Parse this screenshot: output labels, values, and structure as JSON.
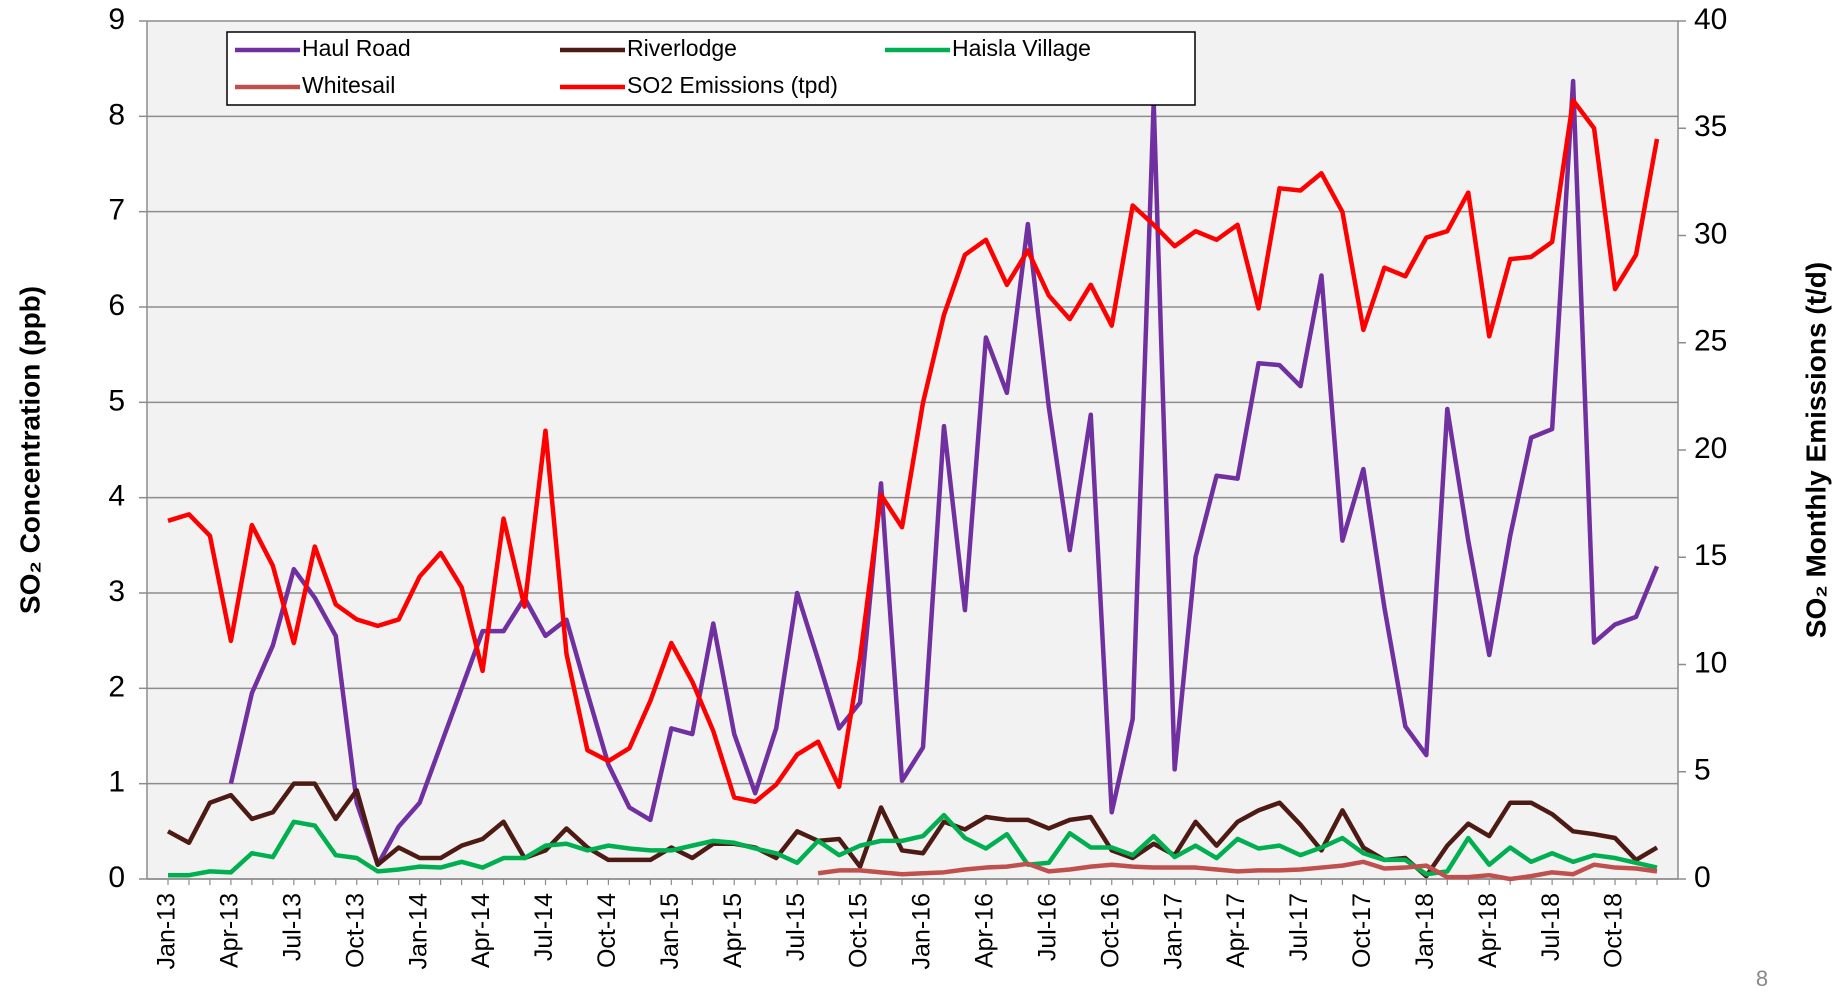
{
  "chart_data": {
    "type": "line",
    "categories": [
      "Jan-13",
      null,
      null,
      "Apr-13",
      null,
      null,
      "Jul-13",
      null,
      null,
      "Oct-13",
      null,
      null,
      "Jan-14",
      null,
      null,
      "Apr-14",
      null,
      null,
      "Jul-14",
      null,
      null,
      "Oct-14",
      null,
      null,
      "Jan-15",
      null,
      null,
      "Apr-15",
      null,
      null,
      "Jul-15",
      null,
      null,
      "Oct-15",
      null,
      null,
      "Jan-16",
      null,
      null,
      "Apr-16",
      null,
      null,
      "Jul-16",
      null,
      null,
      "Oct-16",
      null,
      null,
      "Jan-17",
      null,
      null,
      "Apr-17",
      null,
      null,
      "Jul-17",
      null,
      null,
      "Oct-17",
      null,
      null,
      "Jan-18",
      null,
      null,
      "Apr-18",
      null,
      null,
      "Jul-18",
      null,
      null,
      "Oct-18",
      null,
      null
    ],
    "y_label": "SO₂ Concentration (ppb)",
    "y2_label": "SO₂ Monthly Emissions (t/d)",
    "ylim": [
      0,
      9
    ],
    "yticks": [
      0,
      1,
      2,
      3,
      4,
      5,
      6,
      7,
      8,
      9
    ],
    "y2lim": [
      0,
      40
    ],
    "y2ticks": [
      0,
      5,
      10,
      15,
      20,
      25,
      30,
      35,
      40
    ],
    "grid": true,
    "legend": "top-left",
    "series": [
      {
        "name": "Haul Road",
        "color": "#7030a0",
        "values": [
          null,
          null,
          null,
          1.0,
          1.95,
          2.45,
          3.25,
          2.95,
          2.55,
          0.8,
          0.15,
          0.55,
          0.8,
          1.4,
          2.0,
          2.6,
          2.6,
          2.95,
          2.55,
          2.72,
          1.95,
          1.2,
          0.75,
          0.62,
          1.58,
          1.52,
          2.68,
          1.52,
          0.9,
          1.58,
          3.0,
          2.3,
          1.58,
          1.85,
          4.15,
          1.03,
          1.38,
          4.75,
          2.82,
          5.68,
          5.1,
          6.87,
          4.95,
          3.45,
          4.87,
          0.7,
          1.68,
          8.15,
          1.15,
          3.38,
          4.23,
          4.2,
          5.41,
          5.39,
          5.17,
          6.33,
          3.55,
          4.3,
          2.85,
          1.6,
          1.3,
          4.93,
          3.55,
          2.35,
          3.6,
          4.63,
          4.72,
          8.37,
          2.48,
          2.67,
          2.75,
          3.28
        ]
      },
      {
        "name": "Riverlodge",
        "color": "#4d1b14",
        "values": [
          0.5,
          0.38,
          0.8,
          0.88,
          0.63,
          0.7,
          1.0,
          1.0,
          0.63,
          0.93,
          0.15,
          0.33,
          0.22,
          0.22,
          0.35,
          0.42,
          0.6,
          0.22,
          0.3,
          0.53,
          0.33,
          0.2,
          0.2,
          0.2,
          0.33,
          0.22,
          0.37,
          0.37,
          0.33,
          0.22,
          0.5,
          0.4,
          0.42,
          0.13,
          0.75,
          0.3,
          0.27,
          0.6,
          0.52,
          0.65,
          0.62,
          0.62,
          0.53,
          0.62,
          0.65,
          0.3,
          0.22,
          0.37,
          0.25,
          0.6,
          0.35,
          0.6,
          0.72,
          0.8,
          0.57,
          0.3,
          0.72,
          0.33,
          0.2,
          0.22,
          0.03,
          0.35,
          0.58,
          0.45,
          0.8,
          0.8,
          0.68,
          0.5,
          0.47,
          0.43,
          0.2,
          0.33
        ]
      },
      {
        "name": "Haisla Village",
        "color": "#00b050",
        "values": [
          0.04,
          0.04,
          0.08,
          0.07,
          0.27,
          0.23,
          0.6,
          0.56,
          0.25,
          0.22,
          0.08,
          0.1,
          0.13,
          0.12,
          0.18,
          0.12,
          0.22,
          0.22,
          0.35,
          0.37,
          0.3,
          0.35,
          0.32,
          0.3,
          0.3,
          0.35,
          0.4,
          0.38,
          0.32,
          0.27,
          0.17,
          0.4,
          0.25,
          0.35,
          0.4,
          0.4,
          0.45,
          0.67,
          0.43,
          0.32,
          0.47,
          0.15,
          0.17,
          0.48,
          0.33,
          0.33,
          0.25,
          0.45,
          0.23,
          0.35,
          0.22,
          0.42,
          0.32,
          0.35,
          0.25,
          0.33,
          0.43,
          0.27,
          0.2,
          0.2,
          0.05,
          0.08,
          0.43,
          0.15,
          0.33,
          0.18,
          0.27,
          0.18,
          0.25,
          0.22,
          0.17,
          0.12
        ]
      },
      {
        "name": "Whitesail",
        "color": "#c0504d",
        "values": [
          null,
          null,
          null,
          null,
          null,
          null,
          null,
          null,
          null,
          null,
          null,
          null,
          null,
          null,
          null,
          null,
          null,
          null,
          null,
          null,
          null,
          null,
          null,
          null,
          null,
          null,
          null,
          null,
          null,
          null,
          null,
          0.06,
          0.09,
          0.09,
          0.07,
          0.05,
          0.06,
          0.07,
          0.1,
          0.12,
          0.13,
          0.16,
          0.08,
          0.1,
          0.13,
          0.15,
          0.13,
          0.12,
          0.12,
          0.12,
          0.1,
          0.08,
          0.09,
          0.09,
          0.1,
          0.12,
          0.14,
          0.18,
          0.11,
          0.12,
          0.14,
          0.02,
          0.02,
          0.04,
          0.0,
          0.03,
          0.07,
          0.05,
          0.15,
          0.12,
          0.11,
          0.08
        ]
      },
      {
        "name": "SO2 Emissions (tpd)",
        "color": "#ff0000",
        "axis": "y2",
        "values": [
          16.7,
          17.0,
          16.0,
          11.1,
          16.5,
          14.6,
          11.0,
          15.5,
          12.8,
          12.1,
          11.8,
          12.1,
          14.1,
          15.2,
          13.6,
          9.7,
          16.8,
          12.7,
          20.9,
          10.5,
          6.0,
          5.5,
          6.1,
          8.3,
          11.0,
          9.2,
          6.9,
          3.8,
          3.6,
          4.4,
          5.8,
          6.4,
          4.3,
          10.3,
          17.9,
          16.4,
          22.2,
          26.3,
          29.1,
          29.8,
          27.7,
          29.3,
          27.2,
          26.1,
          27.7,
          25.8,
          31.4,
          30.5,
          29.5,
          30.2,
          29.8,
          30.5,
          26.6,
          32.2,
          32.1,
          32.9,
          31.1,
          25.6,
          28.5,
          28.1,
          29.9,
          30.2,
          32.0,
          25.3,
          28.9,
          29.0,
          29.7,
          36.3,
          35.0,
          27.5,
          29.1,
          34.5
        ]
      }
    ]
  },
  "footer": {
    "page_number": "8"
  }
}
